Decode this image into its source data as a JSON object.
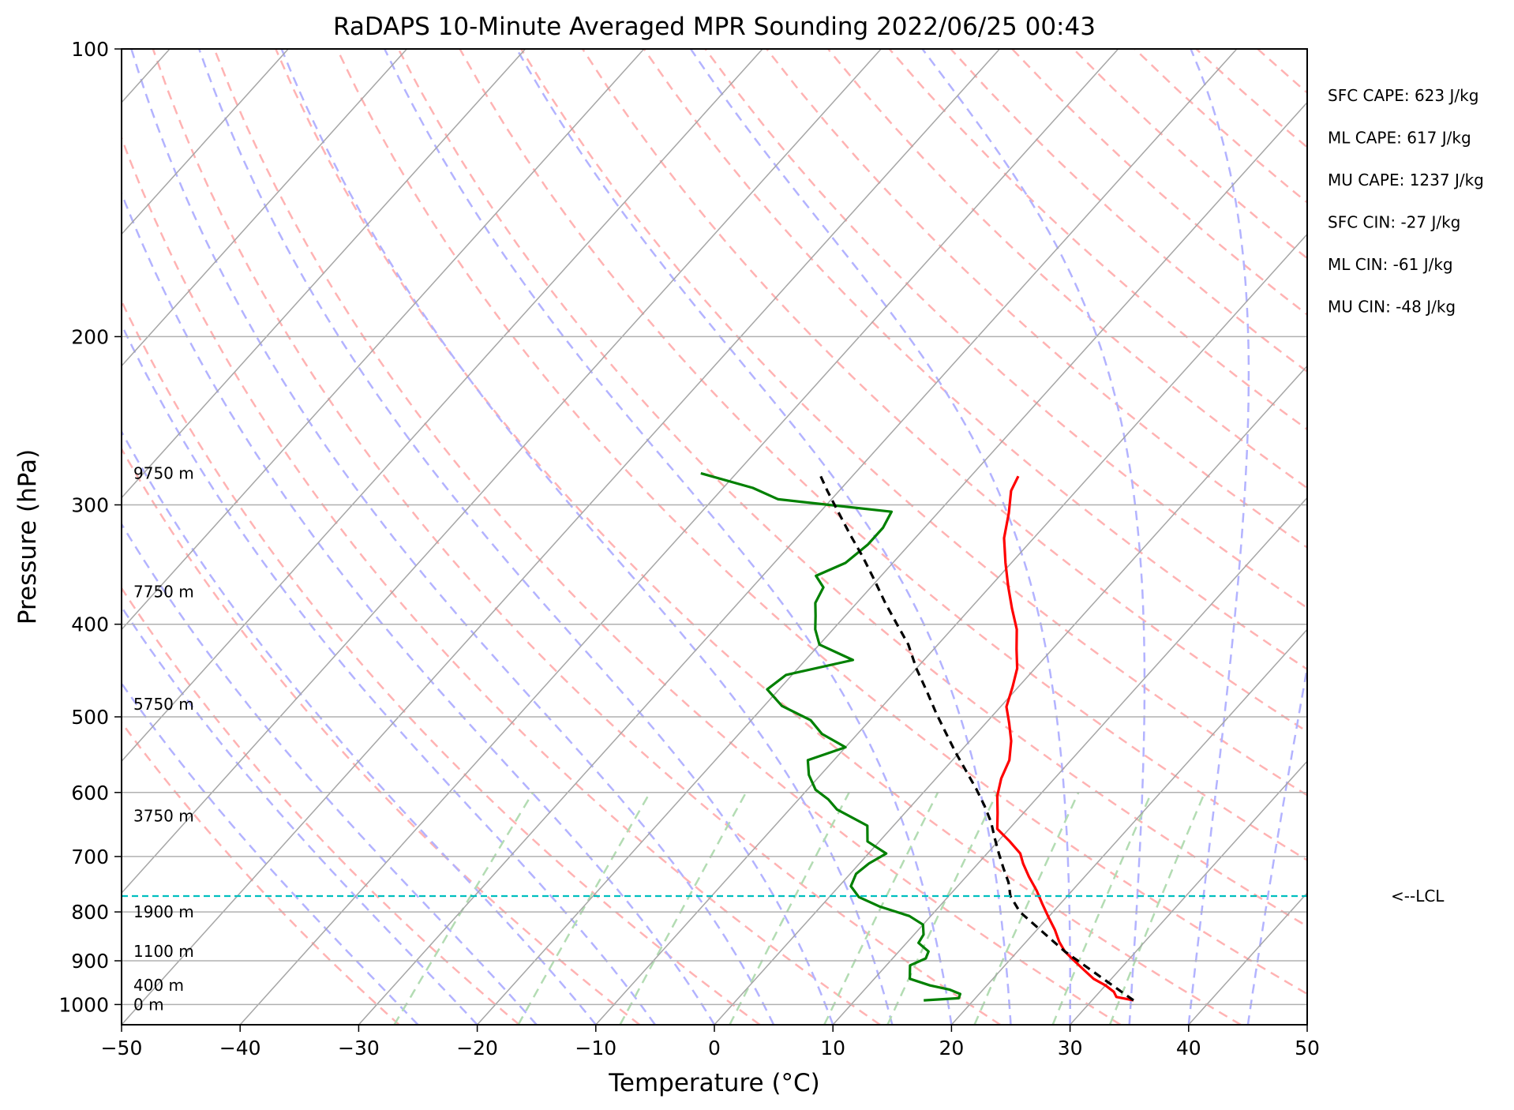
{
  "chart_data": {
    "type": "line",
    "title": "RaDAPS 10-Minute Averaged MPR Sounding 2022/06/25 00:43",
    "xlabel": "Temperature (°C)",
    "ylabel": "Pressure (hPa)",
    "xlim": [
      -50,
      50
    ],
    "ylim": [
      1050,
      100
    ],
    "y_scale": "log",
    "x_ticks": [
      "−50",
      "−40",
      "−30",
      "−20",
      "−10",
      "0",
      "10",
      "20",
      "30",
      "40",
      "50"
    ],
    "x_tick_values": [
      -50,
      -40,
      -30,
      -20,
      -10,
      0,
      10,
      20,
      30,
      40,
      50
    ],
    "y_ticks": [
      "100",
      "200",
      "300",
      "400",
      "500",
      "600",
      "700",
      "800",
      "900",
      "1000"
    ],
    "y_tick_values": [
      100,
      200,
      300,
      400,
      500,
      600,
      700,
      800,
      900,
      1000
    ],
    "grid": true,
    "skew_x": true,
    "series": [
      {
        "role": "temperature",
        "color": "#ff0000",
        "points": [
          [
            33.5,
            990
          ],
          [
            31.8,
            982
          ],
          [
            31.2,
            970
          ],
          [
            30.0,
            955
          ],
          [
            28.5,
            940
          ],
          [
            27.0,
            920
          ],
          [
            25.5,
            900
          ],
          [
            24.0,
            880
          ],
          [
            22.8,
            860
          ],
          [
            21.5,
            835
          ],
          [
            20.0,
            810
          ],
          [
            18.5,
            785
          ],
          [
            17.0,
            760
          ],
          [
            15.3,
            735
          ],
          [
            13.8,
            712
          ],
          [
            12.8,
            695
          ],
          [
            11.0,
            675
          ],
          [
            9.0,
            655
          ],
          [
            7.8,
            630
          ],
          [
            6.5,
            605
          ],
          [
            5.5,
            580
          ],
          [
            4.8,
            555
          ],
          [
            3.5,
            530
          ],
          [
            2.0,
            508
          ],
          [
            0.5,
            488
          ],
          [
            -0.5,
            465
          ],
          [
            -1.5,
            445
          ],
          [
            -3.0,
            425
          ],
          [
            -4.5,
            405
          ],
          [
            -6.5,
            385
          ],
          [
            -8.5,
            365
          ],
          [
            -10.5,
            345
          ],
          [
            -12.5,
            325
          ],
          [
            -14.0,
            306
          ],
          [
            -15.5,
            290
          ],
          [
            -16.0,
            280
          ]
        ]
      },
      {
        "role": "dewpoint",
        "color": "#008000",
        "points": [
          [
            15.8,
            990
          ],
          [
            18.6,
            985
          ],
          [
            18.4,
            975
          ],
          [
            17.2,
            965
          ],
          [
            15.2,
            955
          ],
          [
            13.0,
            940
          ],
          [
            12.5,
            925
          ],
          [
            12.0,
            910
          ],
          [
            12.8,
            895
          ],
          [
            12.5,
            880
          ],
          [
            11.0,
            862
          ],
          [
            10.8,
            845
          ],
          [
            10.0,
            825
          ],
          [
            8.2,
            808
          ],
          [
            5.0,
            790
          ],
          [
            2.5,
            772
          ],
          [
            1.0,
            752
          ],
          [
            0.5,
            730
          ],
          [
            0.8,
            712
          ],
          [
            1.5,
            695
          ],
          [
            -1.0,
            675
          ],
          [
            -2.2,
            650
          ],
          [
            -6.0,
            625
          ],
          [
            -7.5,
            610
          ],
          [
            -9.3,
            596
          ],
          [
            -11.0,
            575
          ],
          [
            -12.2,
            555
          ],
          [
            -10.0,
            538
          ],
          [
            -13.0,
            521
          ],
          [
            -15.0,
            504
          ],
          [
            -18.5,
            487
          ],
          [
            -21.0,
            468
          ],
          [
            -20.5,
            452
          ],
          [
            -16.0,
            436
          ],
          [
            -20.0,
            420
          ],
          [
            -21.5,
            405
          ],
          [
            -22.5,
            392
          ],
          [
            -23.5,
            380
          ],
          [
            -24.0,
            366
          ],
          [
            -25.5,
            356
          ],
          [
            -24.0,
            345
          ],
          [
            -23.5,
            330
          ],
          [
            -23.5,
            317
          ],
          [
            -24.0,
            305
          ],
          [
            -34.5,
            296
          ],
          [
            -37.5,
            288
          ],
          [
            -43.0,
            278
          ]
        ]
      },
      {
        "role": "parcel",
        "color": "#000000",
        "style": "dashed",
        "points": [
          [
            33.5,
            990
          ],
          [
            24.0,
            880
          ],
          [
            17.2,
            800
          ],
          [
            15.2,
            770
          ],
          [
            14.0,
            745
          ],
          [
            12.5,
            720
          ],
          [
            11.0,
            695
          ],
          [
            9.5,
            670
          ],
          [
            8.0,
            645
          ],
          [
            6.2,
            620
          ],
          [
            4.2,
            595
          ],
          [
            2.0,
            570
          ],
          [
            -0.3,
            545
          ],
          [
            -2.6,
            520
          ],
          [
            -5.0,
            495
          ],
          [
            -7.4,
            470
          ],
          [
            -10.0,
            445
          ],
          [
            -12.5,
            420
          ],
          [
            -15.0,
            400
          ],
          [
            -17.6,
            380
          ],
          [
            -20.2,
            360
          ],
          [
            -23.0,
            340
          ],
          [
            -25.8,
            322
          ],
          [
            -28.5,
            305
          ],
          [
            -31.0,
            290
          ],
          [
            -33.0,
            278
          ]
        ]
      }
    ],
    "lcl_pressure": 770,
    "lcl_label": "<--LCL",
    "height_labels": [
      {
        "text": "9750 m",
        "p": 278
      },
      {
        "text": "7750 m",
        "p": 370
      },
      {
        "text": "5750 m",
        "p": 485
      },
      {
        "text": "3750 m",
        "p": 635
      },
      {
        "text": "1900 m",
        "p": 800
      },
      {
        "text": "1100 m",
        "p": 880
      },
      {
        "text": "400 m",
        "p": 955
      },
      {
        "text": "0 m",
        "p": 1000
      }
    ],
    "annotations": [
      "SFC CAPE: 623 J/kg",
      "ML CAPE: 617 J/kg",
      "MU CAPE: 1237 J/kg",
      "SFC CIN: -27 J/kg",
      "ML CIN: -61 J/kg",
      "MU CIN: -48 J/kg"
    ],
    "colors": {
      "isotherm": "#a6a6a6",
      "dry_adiabat": "#ffb3b3",
      "moist_adiabat": "#b3b3ff",
      "mixing_ratio": "#b3dcb3",
      "lcl": "#00bfbf"
    }
  }
}
